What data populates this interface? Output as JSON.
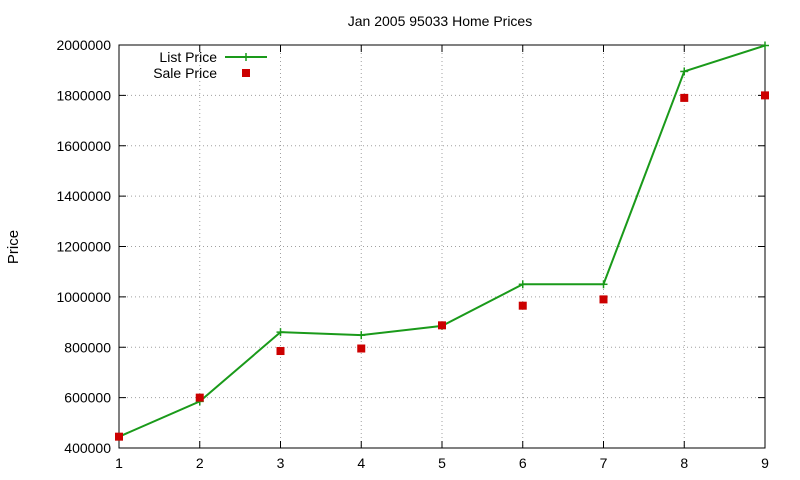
{
  "chart_data": {
    "type": "line",
    "title": "Jan 2005 95033 Home Prices",
    "xlabel": "",
    "ylabel": "Price",
    "x": [
      1,
      2,
      3,
      4,
      5,
      6,
      7,
      8,
      9
    ],
    "xlim": [
      1,
      9
    ],
    "ylim": [
      400000,
      2000000
    ],
    "yticks": [
      400000,
      600000,
      800000,
      1000000,
      1200000,
      1400000,
      1600000,
      1800000,
      2000000
    ],
    "xticks": [
      1,
      2,
      3,
      4,
      5,
      6,
      7,
      8,
      9
    ],
    "grid": true,
    "legend_position": "top-left",
    "series": [
      {
        "name": "List Price",
        "style": "linespoints",
        "marker": "plus",
        "color": "#1a9a1a",
        "values": [
          445000,
          585000,
          860000,
          848000,
          885000,
          1050000,
          1050000,
          1895000,
          1998000
        ]
      },
      {
        "name": "Sale Price",
        "style": "points",
        "marker": "square",
        "color": "#cc0000",
        "values": [
          445000,
          600000,
          785000,
          795000,
          887000,
          965000,
          990000,
          1790000,
          1800000
        ]
      }
    ]
  }
}
